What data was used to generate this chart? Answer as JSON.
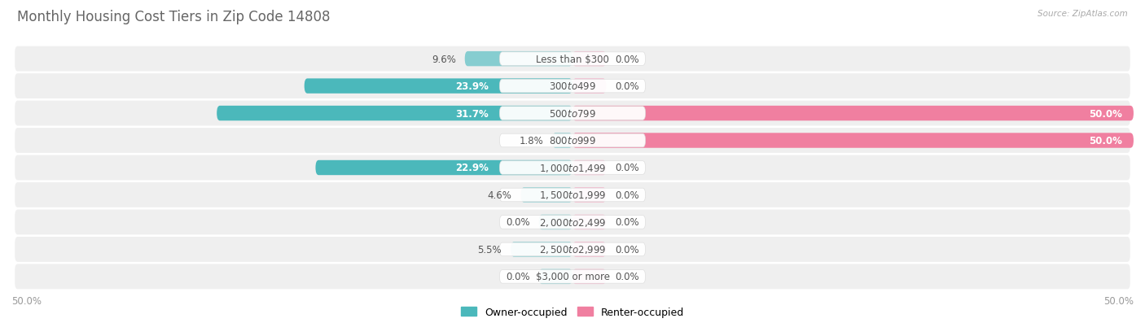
{
  "title": "Monthly Housing Cost Tiers in Zip Code 14808",
  "source": "Source: ZipAtlas.com",
  "categories": [
    "Less than $300",
    "$300 to $499",
    "$500 to $799",
    "$800 to $999",
    "$1,000 to $1,499",
    "$1,500 to $1,999",
    "$2,000 to $2,499",
    "$2,500 to $2,999",
    "$3,000 or more"
  ],
  "owner_values": [
    9.6,
    23.9,
    31.7,
    1.8,
    22.9,
    4.6,
    0.0,
    5.5,
    0.0
  ],
  "renter_values": [
    0.0,
    0.0,
    50.0,
    50.0,
    0.0,
    0.0,
    0.0,
    0.0,
    0.0
  ],
  "owner_color_dark": "#4bb8bb",
  "owner_color_light": "#86cdd0",
  "renter_color_dark": "#f07fa0",
  "renter_color_light": "#f5b0c8",
  "row_bg_color": "#efefef",
  "row_bg_alt": "#f7f7f7",
  "axis_max": 50.0,
  "axis_label_left": "50.0%",
  "axis_label_right": "50.0%",
  "title_fontsize": 12,
  "label_fontsize": 8.5,
  "cat_fontsize": 8.5,
  "bar_height": 0.55,
  "min_stub": 3.0,
  "background_color": "#ffffff",
  "label_color_dark": "#555555",
  "label_color_white": "#ffffff"
}
